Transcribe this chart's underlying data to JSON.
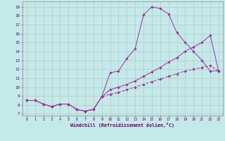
{
  "xlabel": "Windchill (Refroidissement éolien,°C)",
  "bg_color": "#c5e8e8",
  "grid_color": "#b0cccc",
  "line_color": "#993399",
  "yticks": [
    7,
    8,
    9,
    10,
    11,
    12,
    13,
    14,
    15,
    16,
    17,
    18,
    19
  ],
  "xticks": [
    0,
    1,
    2,
    3,
    4,
    5,
    6,
    7,
    8,
    9,
    10,
    11,
    12,
    13,
    14,
    15,
    16,
    17,
    18,
    19,
    20,
    21,
    22,
    23
  ],
  "line1_x": [
    0,
    1,
    2,
    3,
    4,
    5,
    6,
    7,
    8,
    9,
    10,
    11,
    12,
    13,
    14,
    15,
    16,
    17,
    18,
    19,
    20,
    21,
    22,
    23
  ],
  "line1_y": [
    8.5,
    8.5,
    8.1,
    7.8,
    8.1,
    8.1,
    7.5,
    7.3,
    7.5,
    8.9,
    11.6,
    11.8,
    13.2,
    14.3,
    18.1,
    19.0,
    18.8,
    18.2,
    16.1,
    15.0,
    14.0,
    13.0,
    11.8,
    11.8
  ],
  "line2_x": [
    0,
    1,
    2,
    3,
    4,
    5,
    6,
    7,
    8,
    9,
    10,
    11,
    12,
    13,
    14,
    15,
    16,
    17,
    18,
    19,
    20,
    21,
    22,
    23
  ],
  "line2_y": [
    8.5,
    8.5,
    8.1,
    7.8,
    8.1,
    8.1,
    7.5,
    7.3,
    7.5,
    8.9,
    9.7,
    10.0,
    10.3,
    10.7,
    11.2,
    11.7,
    12.2,
    12.8,
    13.3,
    14.0,
    14.5,
    15.0,
    15.8,
    11.8
  ],
  "line3_x": [
    0,
    1,
    2,
    3,
    4,
    5,
    6,
    7,
    8,
    9,
    10,
    11,
    12,
    13,
    14,
    15,
    16,
    17,
    18,
    19,
    20,
    21,
    22,
    23
  ],
  "line3_y": [
    8.5,
    8.5,
    8.1,
    7.8,
    8.1,
    8.1,
    7.5,
    7.3,
    7.5,
    8.9,
    9.2,
    9.4,
    9.7,
    10.0,
    10.3,
    10.6,
    10.9,
    11.2,
    11.5,
    11.8,
    12.0,
    12.2,
    12.4,
    11.8
  ]
}
